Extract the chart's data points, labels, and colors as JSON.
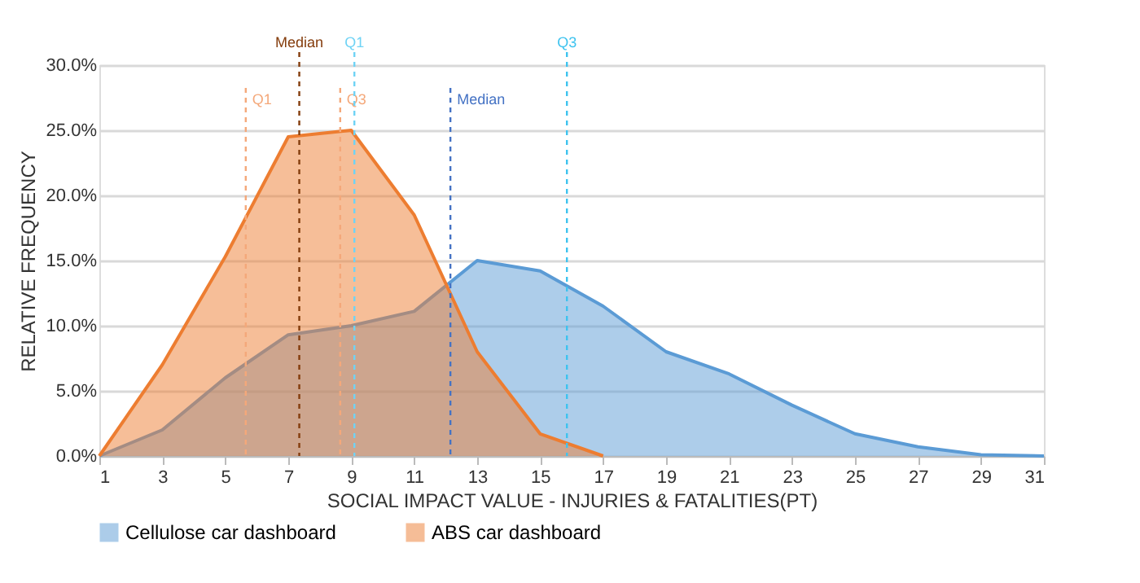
{
  "chart_data": {
    "type": "area",
    "xlabel": "SOCIAL IMPACT VALUE - INJURIES & FATALITIES(PT)",
    "ylabel": "RELATIVE FREQUENCY",
    "xlim": [
      1,
      31
    ],
    "xticks": [
      1,
      3,
      5,
      7,
      9,
      11,
      13,
      15,
      17,
      19,
      21,
      23,
      25,
      27,
      29,
      31
    ],
    "ylim": [
      0,
      30
    ],
    "yticks": [
      {
        "value": 0,
        "label": "0.0%"
      },
      {
        "value": 5,
        "label": "5.0%"
      },
      {
        "value": 10,
        "label": "10.0%"
      },
      {
        "value": 15,
        "label": "15.0%"
      },
      {
        "value": 20,
        "label": "20.0%"
      },
      {
        "value": 25,
        "label": "25.0%"
      },
      {
        "value": 30,
        "label": "30.0%"
      }
    ],
    "grid": "y",
    "legend": "bottom",
    "series": [
      {
        "name": "Cellulose car dashboard",
        "color": "#5b9bd5",
        "x": [
          1,
          3,
          5,
          7,
          9,
          11,
          13,
          15,
          17,
          19,
          21,
          23,
          25,
          27,
          29,
          31
        ],
        "values": [
          0,
          2.0,
          6.0,
          9.3,
          10.0,
          11.1,
          15.0,
          14.2,
          11.5,
          8.0,
          6.3,
          3.9,
          1.7,
          0.7,
          0.1,
          0
        ]
      },
      {
        "name": "ABS car dashboard",
        "color": "#ed7d31",
        "x": [
          1,
          3,
          5,
          7,
          9,
          11,
          13,
          15,
          17
        ],
        "values": [
          0,
          7.0,
          15.3,
          24.5,
          25.0,
          18.5,
          8.0,
          1.7,
          0
        ]
      }
    ],
    "ref_lines": [
      {
        "axis": "x",
        "value": 5.65,
        "label": "Q1",
        "color": "#f4a87a",
        "line_style": "dashed"
      },
      {
        "axis": "x",
        "value": 7.35,
        "label": "Median",
        "color": "#843c0c",
        "line_style": "dashed"
      },
      {
        "axis": "x",
        "value": 8.65,
        "label": "Q3",
        "color": "#f4a87a",
        "line_style": "dashed"
      },
      {
        "axis": "x",
        "value": 9.1,
        "label": "Q1",
        "color": "#6fd3f5",
        "line_style": "dashed"
      },
      {
        "axis": "x",
        "value": 12.15,
        "label": "Median",
        "color": "#4472c4",
        "line_style": "dashed"
      },
      {
        "axis": "x",
        "value": 15.85,
        "label": "Q3",
        "color": "#3ec3ef",
        "line_style": "dashed"
      }
    ]
  }
}
